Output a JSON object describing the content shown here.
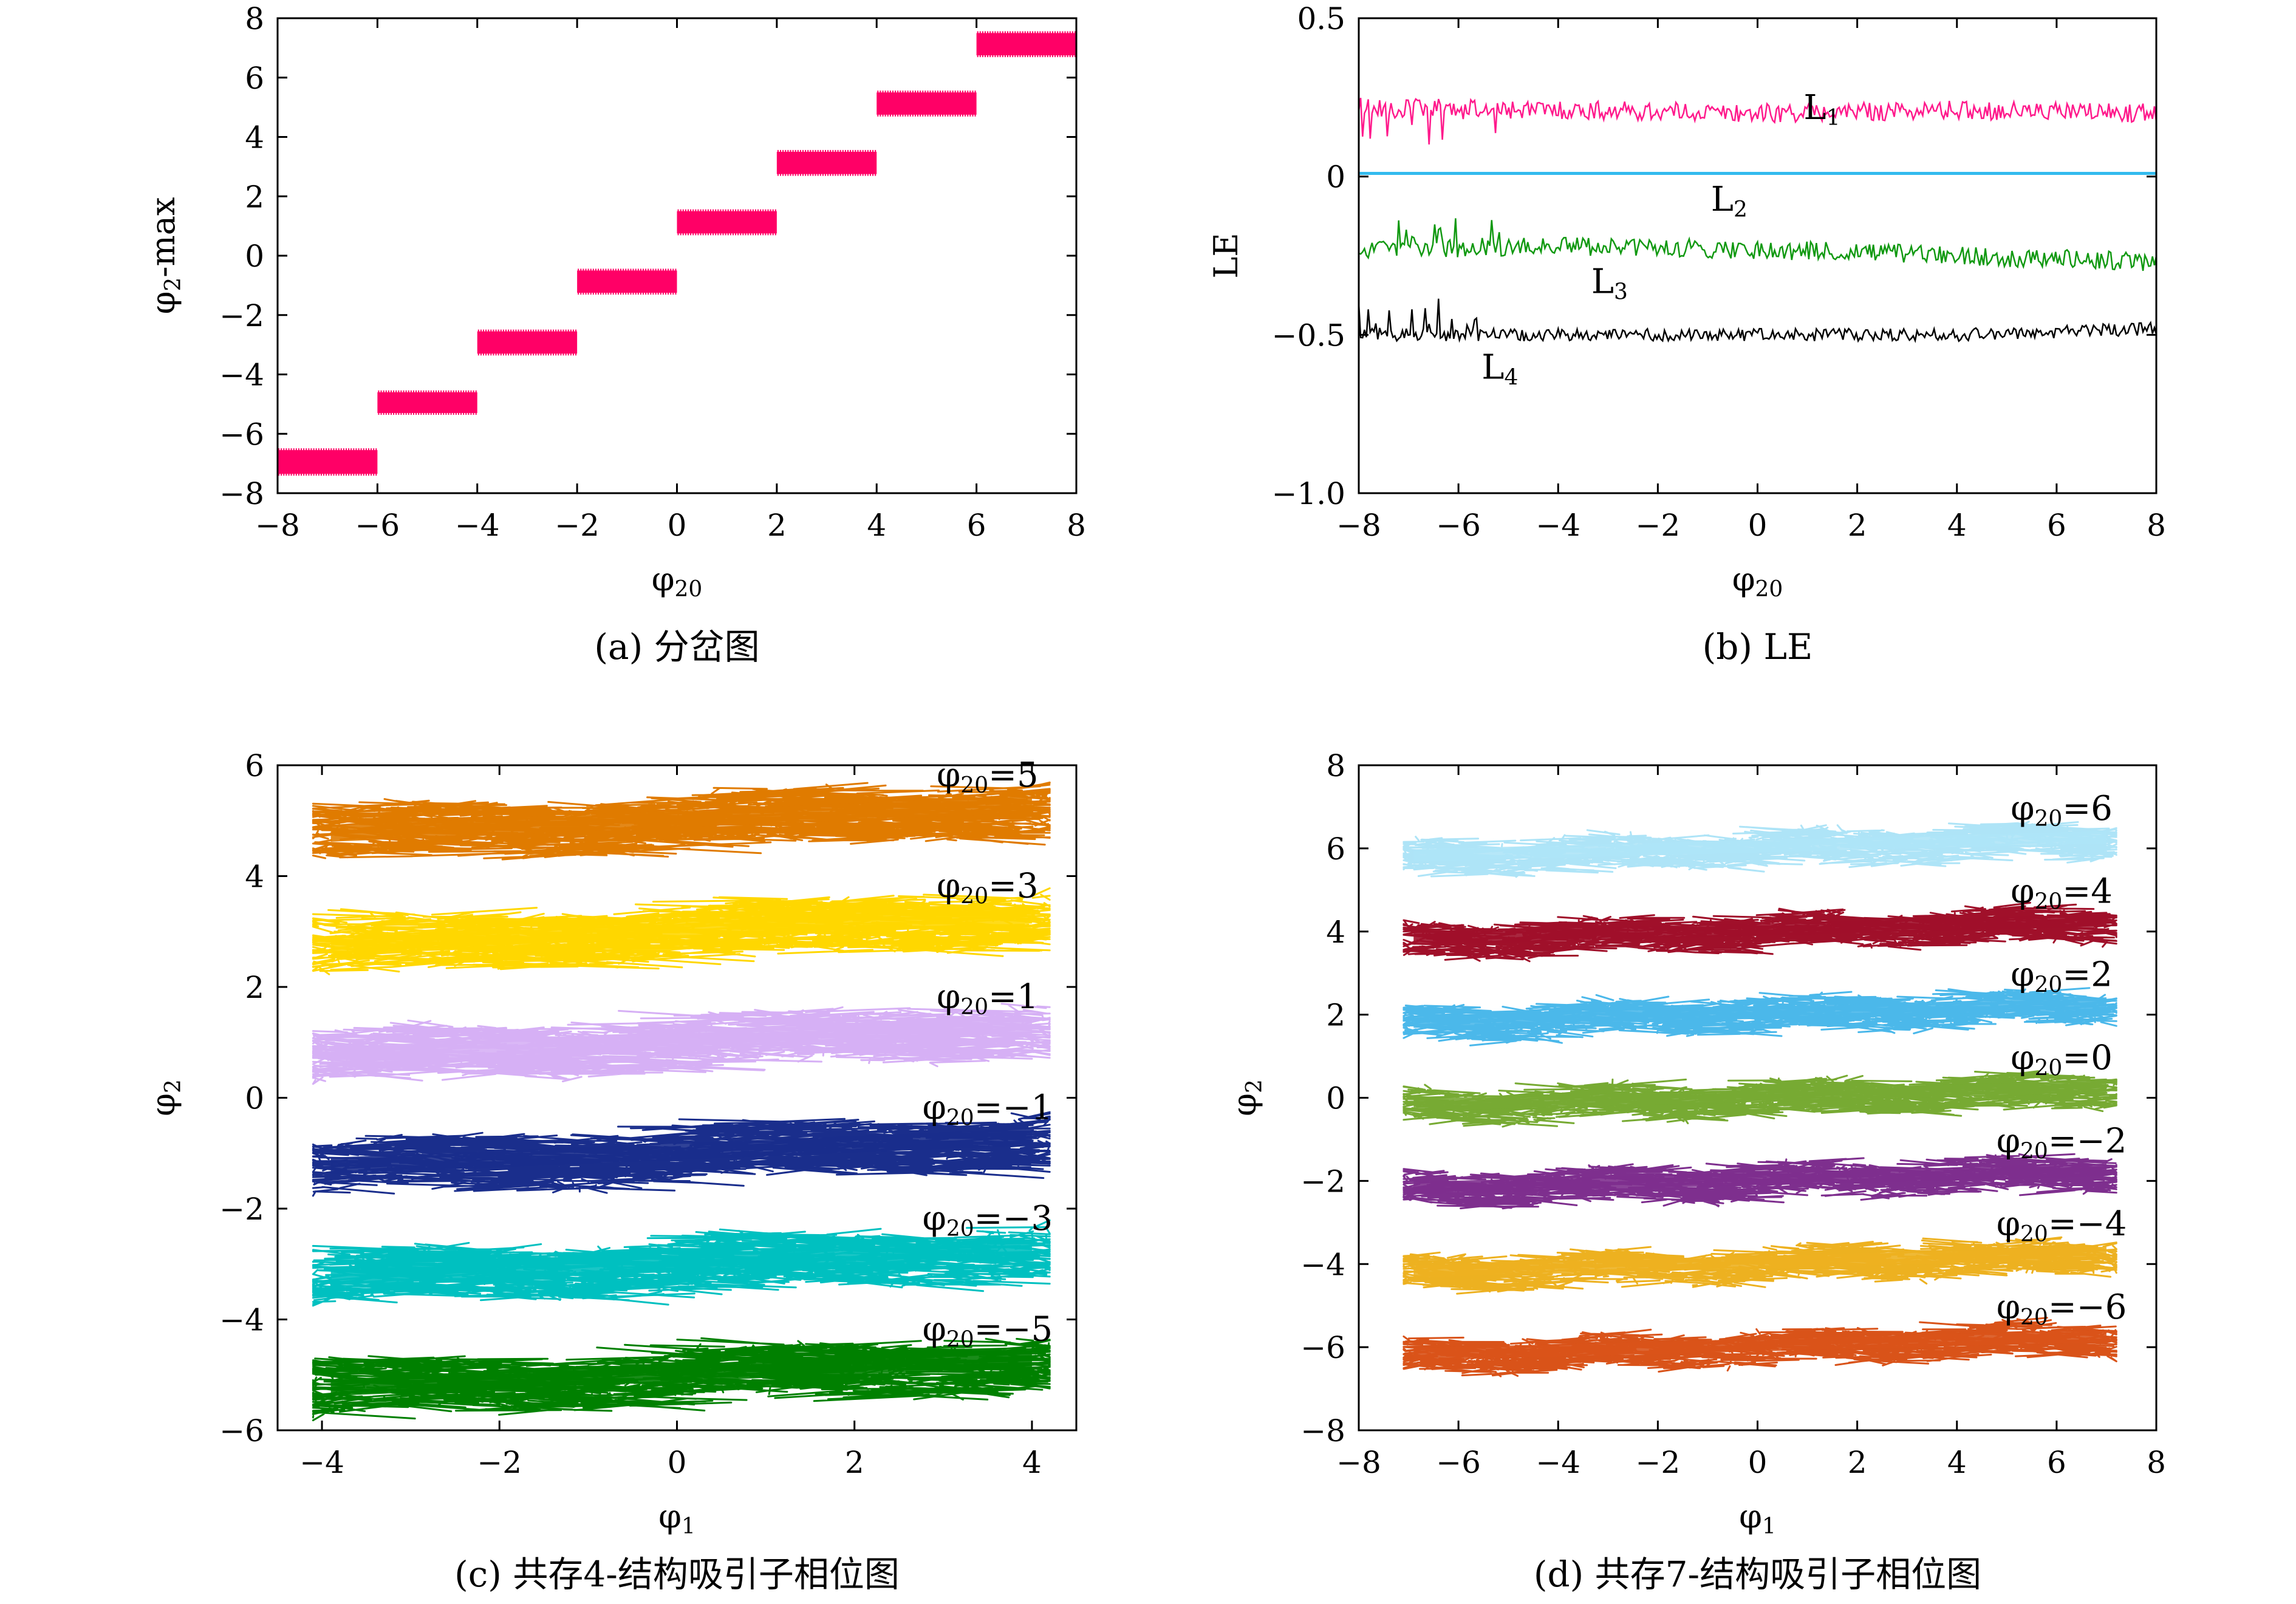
{
  "chart_data": [
    {
      "type": "scatter",
      "caption": "(a) 分岔图",
      "xlabel": "φ20",
      "ylabel": "φ2-max",
      "xlim": [
        -8,
        8
      ],
      "ylim": [
        -8,
        8
      ],
      "xticks": [
        "−8",
        "−6",
        "−4",
        "−2",
        "0",
        "2",
        "4",
        "6",
        "8"
      ],
      "yticks": [
        "−8",
        "−6",
        "−4",
        "−2",
        "0",
        "2",
        "4",
        "6",
        "8"
      ],
      "color": "#ff0066",
      "series": [
        {
          "values": [
            {
              "x": [
                -8,
                -6
              ],
              "y": [
                -7.35,
                -6.55
              ]
            },
            {
              "x": [
                -6,
                -4
              ],
              "y": [
                -5.3,
                -4.6
              ]
            },
            {
              "x": [
                -4,
                -2
              ],
              "y": [
                -3.3,
                -2.55
              ]
            },
            {
              "x": [
                -2,
                0
              ],
              "y": [
                -1.25,
                -0.5
              ]
            },
            {
              "x": [
                0,
                2
              ],
              "y": [
                0.75,
                1.5
              ]
            },
            {
              "x": [
                2,
                4
              ],
              "y": [
                2.75,
                3.5
              ]
            },
            {
              "x": [
                4,
                6
              ],
              "y": [
                4.75,
                5.5
              ]
            },
            {
              "x": [
                6,
                8
              ],
              "y": [
                6.75,
                7.5
              ]
            }
          ]
        }
      ]
    },
    {
      "type": "line",
      "caption": "(b) LE",
      "xlabel": "φ20",
      "ylabel": "LE",
      "xlim": [
        -8,
        8
      ],
      "ylim": [
        -1.0,
        0.5
      ],
      "xticks": [
        "−8",
        "−6",
        "−4",
        "−2",
        "0",
        "2",
        "4",
        "6",
        "8"
      ],
      "yticks": [
        "−1.0",
        "−0.5",
        "0",
        "0.5"
      ],
      "series": [
        {
          "name": "L1",
          "color": "#ff1a8c",
          "x": [
            -8,
            -4,
            0,
            4,
            8
          ],
          "values": [
            0.22,
            0.21,
            0.2,
            0.21,
            0.2
          ],
          "noise": 0.03
        },
        {
          "name": "L2",
          "color": "#33bbee",
          "x": [
            -8,
            8
          ],
          "values": [
            0.01,
            0.01
          ],
          "noise": 0.0
        },
        {
          "name": "L3",
          "color": "#119911",
          "x": [
            -8,
            -4,
            0,
            4,
            8
          ],
          "values": [
            -0.23,
            -0.22,
            -0.23,
            -0.25,
            -0.27
          ],
          "noise": 0.03
        },
        {
          "name": "L4",
          "color": "#000000",
          "x": [
            -8,
            -4,
            0,
            4,
            8
          ],
          "values": [
            -0.5,
            -0.5,
            -0.5,
            -0.5,
            -0.48
          ],
          "noise": 0.02
        }
      ]
    },
    {
      "type": "scatter",
      "caption": "(c) 共存4-结构吸引子相位图",
      "xlabel": "φ1",
      "ylabel": "φ2",
      "xlim": [
        -4.5,
        4.5
      ],
      "ylim": [
        -6,
        6
      ],
      "xticks": [
        "−4",
        "−2",
        "0",
        "2",
        "4"
      ],
      "yticks": [
        "−6",
        "−4",
        "−2",
        "0",
        "2",
        "4",
        "6"
      ],
      "series": [
        {
          "name": "φ20=5",
          "value": 5,
          "color": "#e07b00"
        },
        {
          "name": "φ20=3",
          "value": 3,
          "color": "#ffd700"
        },
        {
          "name": "φ20=1",
          "value": 1,
          "color": "#d6b0f5"
        },
        {
          "name": "φ20=−1",
          "value": -1,
          "color": "#1a2e8c"
        },
        {
          "name": "φ20=−3",
          "value": -3,
          "color": "#00c0c0"
        },
        {
          "name": "φ20=−5",
          "value": -5,
          "color": "#008000"
        }
      ]
    },
    {
      "type": "scatter",
      "caption": "(d) 共存7-结构吸引子相位图",
      "xlabel": "φ1",
      "ylabel": "φ2",
      "xlim": [
        -8,
        8
      ],
      "ylim": [
        -8,
        8
      ],
      "xticks": [
        "−8",
        "−6",
        "−4",
        "−2",
        "0",
        "2",
        "4",
        "6",
        "8"
      ],
      "yticks": [
        "−8",
        "−6",
        "−4",
        "−2",
        "0",
        "2",
        "4",
        "6",
        "8"
      ],
      "series": [
        {
          "name": "φ20=6",
          "value": 6,
          "color": "#aee4f7"
        },
        {
          "name": "φ20=4",
          "value": 4,
          "color": "#a0102a"
        },
        {
          "name": "φ20=2",
          "value": 2,
          "color": "#4bb8ea"
        },
        {
          "name": "φ20=0",
          "value": 0,
          "color": "#77aa33"
        },
        {
          "name": "φ20=−2",
          "value": -2,
          "color": "#7e2f8e"
        },
        {
          "name": "φ20=−4",
          "value": -4,
          "color": "#edb120"
        },
        {
          "name": "φ20=−6",
          "value": -6,
          "color": "#d95319"
        }
      ]
    }
  ]
}
